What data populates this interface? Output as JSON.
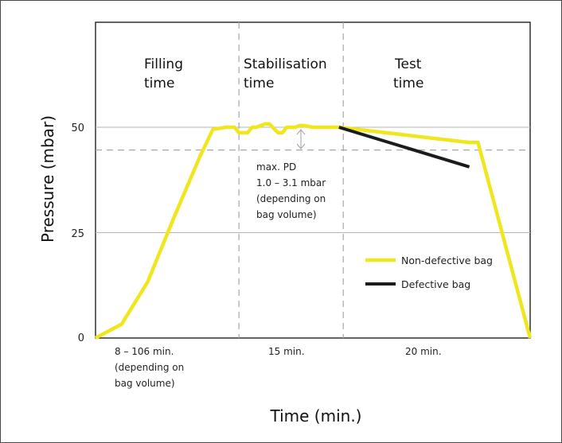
{
  "chart_data": {
    "type": "line",
    "xlabel": "Time (min.)",
    "ylabel": "Pressure (mbar)",
    "ylim": [
      0,
      68
    ],
    "yticks": [
      "0",
      "25",
      "50"
    ],
    "threshold_value": 44.6,
    "phases": [
      {
        "label_line1": "Filling",
        "label_line2": "time",
        "duration_lines": [
          "8 – 106 min.",
          "(depending on",
          "bag volume)"
        ]
      },
      {
        "label_line1": "Stabilisation",
        "label_line2": "time",
        "duration_lines": [
          "15 min."
        ]
      },
      {
        "label_line1": "Test",
        "label_line2": "time",
        "duration_lines": [
          "20 min."
        ]
      }
    ],
    "annotation_lines": [
      "max. PD",
      "1.0 – 3.1 mbar",
      "(depending on",
      "bag volume)"
    ],
    "series": [
      {
        "name": "Non-defective bag",
        "color": "#f0e61e",
        "x": [
          0.0,
          0.06,
          0.12,
          0.18,
          0.24,
          0.27,
          0.3,
          0.32,
          0.33,
          0.35,
          0.36,
          0.37,
          0.39,
          0.4,
          0.42,
          0.43,
          0.44,
          0.46,
          0.47,
          0.48,
          0.5,
          0.56,
          0.86,
          0.88,
          1.0
        ],
        "y": [
          0,
          3.3,
          13.3,
          28.5,
          43,
          49.5,
          50,
          50,
          48.7,
          48.7,
          50,
          50,
          50.8,
          50.8,
          48.7,
          48.7,
          50,
          50,
          50.4,
          50.4,
          50,
          50,
          46.4,
          46.4,
          0
        ]
      },
      {
        "name": "Defective bag",
        "color": "#1c1c1c",
        "x": [
          0.56,
          0.86
        ],
        "y": [
          50,
          40.6
        ]
      }
    ]
  }
}
